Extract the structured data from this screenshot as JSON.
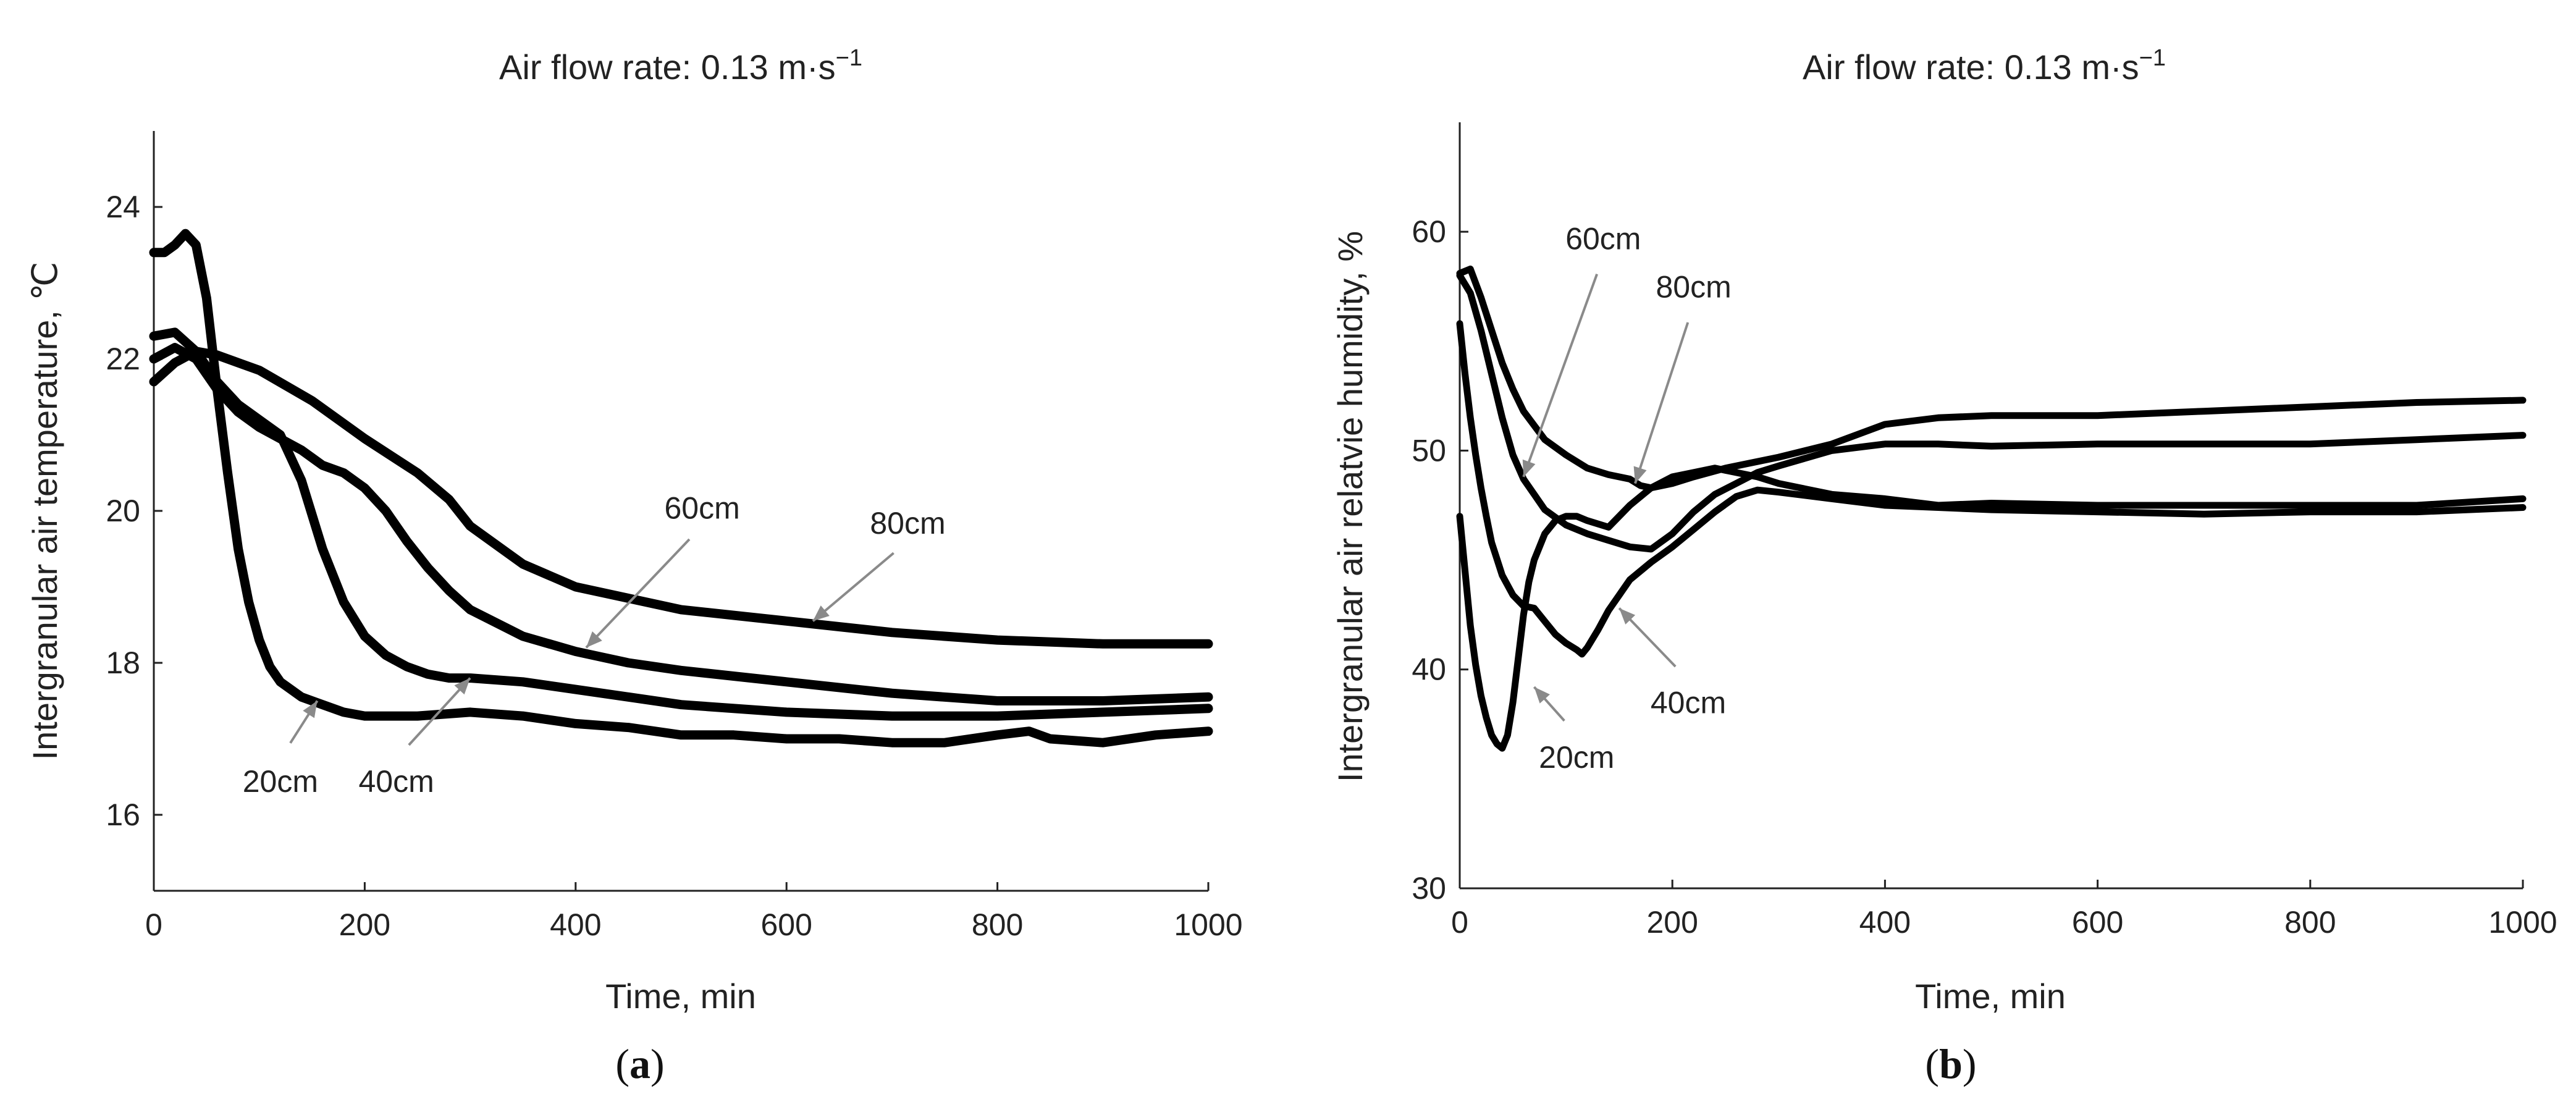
{
  "chart_data": [
    {
      "type": "line",
      "panel_label": "a",
      "title": "Air flow rate: 0.13 m·s⁻¹",
      "title_main": "Air flow rate: 0.13 m·s",
      "title_sup": "−1",
      "xlabel": "Time, min",
      "ylabel": "Intergranular air temperature, ℃",
      "xlim": [
        0,
        1000
      ],
      "ylim": [
        15,
        25
      ],
      "xticks": [
        "0",
        "200",
        "400",
        "600",
        "800",
        "1000"
      ],
      "yticks": [
        "16",
        "18",
        "20",
        "22",
        "24"
      ],
      "series": [
        {
          "name": "20cm",
          "x": [
            0,
            10,
            20,
            30,
            40,
            50,
            60,
            70,
            80,
            90,
            100,
            110,
            120,
            140,
            160,
            180,
            200,
            250,
            300,
            350,
            400,
            450,
            500,
            550,
            600,
            650,
            700,
            750,
            800,
            830,
            850,
            900,
            950,
            1000
          ],
          "y": [
            23.4,
            23.4,
            23.5,
            23.65,
            23.5,
            22.8,
            21.6,
            20.5,
            19.5,
            18.8,
            18.3,
            17.95,
            17.75,
            17.55,
            17.45,
            17.35,
            17.3,
            17.3,
            17.35,
            17.3,
            17.2,
            17.15,
            17.05,
            17.05,
            17.0,
            17.0,
            16.95,
            16.95,
            17.05,
            17.1,
            17.0,
            16.95,
            17.05,
            17.1
          ]
        },
        {
          "name": "40cm",
          "x": [
            0,
            20,
            40,
            60,
            80,
            100,
            120,
            140,
            160,
            180,
            200,
            220,
            240,
            260,
            280,
            300,
            350,
            400,
            450,
            500,
            600,
            700,
            800,
            900,
            1000
          ],
          "y": [
            22.3,
            22.35,
            22.1,
            21.7,
            21.4,
            21.2,
            21.0,
            20.4,
            19.5,
            18.8,
            18.35,
            18.1,
            17.95,
            17.85,
            17.8,
            17.8,
            17.75,
            17.65,
            17.55,
            17.45,
            17.35,
            17.3,
            17.3,
            17.35,
            17.4
          ]
        },
        {
          "name": "60cm",
          "x": [
            0,
            20,
            40,
            60,
            80,
            100,
            120,
            140,
            160,
            180,
            200,
            220,
            240,
            260,
            280,
            300,
            350,
            400,
            450,
            500,
            600,
            700,
            800,
            900,
            1000
          ],
          "y": [
            22.0,
            22.15,
            22.0,
            21.6,
            21.3,
            21.1,
            20.95,
            20.8,
            20.6,
            20.5,
            20.3,
            20.0,
            19.6,
            19.25,
            18.95,
            18.7,
            18.35,
            18.15,
            18.0,
            17.9,
            17.75,
            17.6,
            17.5,
            17.5,
            17.55
          ]
        },
        {
          "name": "80cm",
          "x": [
            0,
            20,
            40,
            60,
            80,
            100,
            150,
            200,
            250,
            280,
            300,
            350,
            400,
            450,
            500,
            600,
            700,
            800,
            900,
            1000
          ],
          "y": [
            21.7,
            21.95,
            22.1,
            22.05,
            21.95,
            21.85,
            21.45,
            20.95,
            20.5,
            20.15,
            19.8,
            19.3,
            19.0,
            18.85,
            18.7,
            18.55,
            18.4,
            18.3,
            18.25,
            18.25
          ]
        }
      ],
      "annotations": [
        {
          "text": "20cm",
          "x": 120,
          "y": 16.3,
          "arrow_to": [
            155,
            17.5
          ]
        },
        {
          "text": "40cm",
          "x": 230,
          "y": 16.3,
          "arrow_to": [
            300,
            17.8
          ]
        },
        {
          "text": "60cm",
          "x": 520,
          "y": 19.9,
          "arrow_to": [
            410,
            18.2
          ]
        },
        {
          "text": "80cm",
          "x": 715,
          "y": 19.7,
          "arrow_to": [
            625,
            18.55
          ]
        }
      ]
    },
    {
      "type": "line",
      "panel_label": "b",
      "title": "Air flow rate: 0.13 m·s⁻¹",
      "title_main": "Air flow rate: 0.13 m·s",
      "title_sup": "−1",
      "xlabel": "Time, min",
      "ylabel": "Intergranular air relatvie humidity, %",
      "xlim": [
        0,
        1000
      ],
      "ylim": [
        30,
        65
      ],
      "xticks": [
        "0",
        "200",
        "400",
        "600",
        "800",
        "1000"
      ],
      "yticks": [
        "30",
        "40",
        "50",
        "60"
      ],
      "series": [
        {
          "name": "20cm",
          "x": [
            0,
            5,
            10,
            15,
            20,
            25,
            30,
            35,
            40,
            45,
            50,
            55,
            60,
            65,
            70,
            80,
            90,
            100,
            110,
            120,
            140,
            160,
            180,
            200,
            220,
            240,
            260,
            280,
            300,
            350,
            400,
            450,
            500,
            600,
            700,
            800,
            900,
            1000
          ],
          "y": [
            47.0,
            44.5,
            42.0,
            40.2,
            38.8,
            37.8,
            37.0,
            36.6,
            36.4,
            37.0,
            38.5,
            40.5,
            42.5,
            44.0,
            45.0,
            46.2,
            46.8,
            47.0,
            47.0,
            46.8,
            46.5,
            47.5,
            48.3,
            48.8,
            49.0,
            49.2,
            49.0,
            48.8,
            48.5,
            48.0,
            47.8,
            47.5,
            47.6,
            47.5,
            47.5,
            47.5,
            47.5,
            47.8
          ]
        },
        {
          "name": "40cm",
          "x": [
            0,
            5,
            10,
            15,
            20,
            25,
            30,
            40,
            50,
            60,
            70,
            80,
            90,
            100,
            110,
            115,
            120,
            130,
            140,
            150,
            160,
            180,
            200,
            220,
            240,
            260,
            280,
            300,
            350,
            400,
            450,
            500,
            600,
            700,
            800,
            900,
            1000
          ],
          "y": [
            55.8,
            53.5,
            51.5,
            49.8,
            48.3,
            47.0,
            45.8,
            44.3,
            43.4,
            42.9,
            42.8,
            42.2,
            41.6,
            41.2,
            40.9,
            40.7,
            41.0,
            41.8,
            42.7,
            43.4,
            44.1,
            44.9,
            45.6,
            46.4,
            47.2,
            47.9,
            48.2,
            48.1,
            47.8,
            47.5,
            47.4,
            47.3,
            47.2,
            47.1,
            47.2,
            47.2,
            47.4
          ]
        },
        {
          "name": "60cm",
          "x": [
            0,
            10,
            20,
            30,
            40,
            50,
            60,
            70,
            80,
            100,
            120,
            140,
            160,
            180,
            200,
            220,
            240,
            260,
            280,
            300,
            350,
            400,
            450,
            500,
            600,
            700,
            800,
            900,
            1000
          ],
          "y": [
            58.0,
            57.2,
            55.5,
            53.5,
            51.5,
            49.8,
            48.7,
            48.0,
            47.3,
            46.6,
            46.2,
            45.9,
            45.6,
            45.5,
            46.2,
            47.2,
            48.0,
            48.5,
            49.0,
            49.3,
            50.0,
            50.3,
            50.3,
            50.2,
            50.3,
            50.3,
            50.3,
            50.5,
            50.7
          ]
        },
        {
          "name": "80cm",
          "x": [
            0,
            10,
            20,
            30,
            40,
            50,
            60,
            80,
            100,
            120,
            140,
            160,
            170,
            180,
            200,
            220,
            250,
            300,
            350,
            400,
            450,
            500,
            600,
            700,
            800,
            900,
            1000
          ],
          "y": [
            58.1,
            58.3,
            57.0,
            55.5,
            54.0,
            52.8,
            51.8,
            50.5,
            49.8,
            49.2,
            48.9,
            48.7,
            48.4,
            48.3,
            48.5,
            48.8,
            49.2,
            49.7,
            50.3,
            51.2,
            51.5,
            51.6,
            51.6,
            51.8,
            52.0,
            52.2,
            52.3
          ]
        }
      ],
      "annotations": [
        {
          "text": "20cm",
          "x": 110,
          "y": 35.5,
          "arrow_to": [
            70,
            39.2
          ]
        },
        {
          "text": "40cm",
          "x": 215,
          "y": 38.0,
          "arrow_to": [
            150,
            42.8
          ]
        },
        {
          "text": "60cm",
          "x": 135,
          "y": 59.2,
          "arrow_to": [
            60,
            48.8
          ]
        },
        {
          "text": "80cm",
          "x": 220,
          "y": 57.0,
          "arrow_to": [
            165,
            48.5
          ]
        }
      ]
    }
  ]
}
